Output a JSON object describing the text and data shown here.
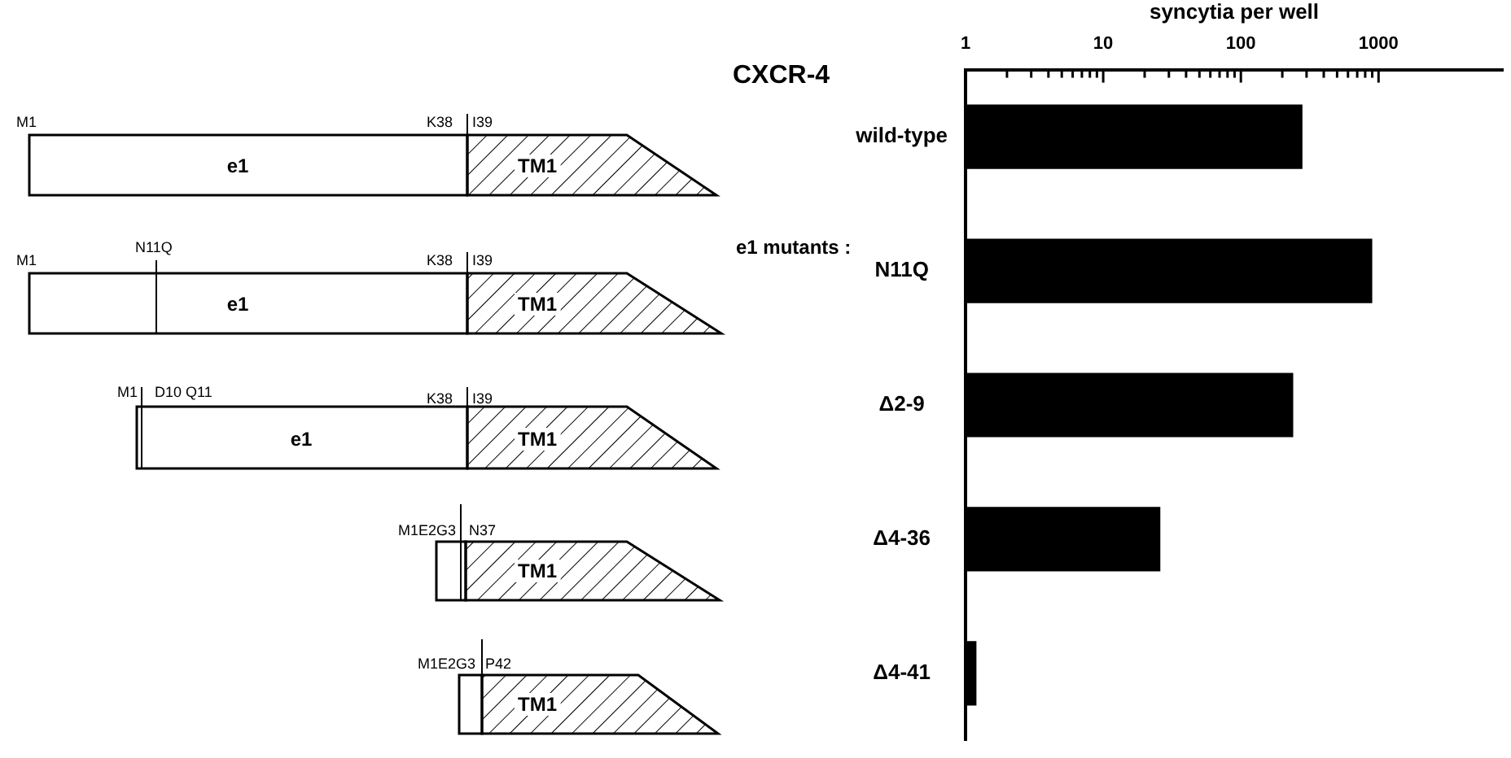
{
  "chart_data": {
    "type": "bar",
    "orientation": "horizontal",
    "title": "CXCR-4",
    "xlabel": "syncytia per well",
    "categories": [
      "wild-type",
      "N11Q",
      "Δ2-9",
      "Δ4-36",
      "Δ4-41"
    ],
    "values": [
      280,
      900,
      240,
      26,
      1.2
    ],
    "color": "#000000",
    "log": "x",
    "xlim": [
      1,
      8000
    ],
    "xticks": [
      1,
      {
        "value": 2,
        "label": null
      },
      {
        "value": 3,
        "label": null
      },
      {
        "value": 4,
        "label": null
      },
      {
        "value": 5,
        "label": null
      },
      {
        "value": 6,
        "label": null
      },
      {
        "value": 7,
        "label": null
      },
      {
        "value": 8,
        "label": null
      },
      {
        "value": 9,
        "label": null
      },
      10,
      {
        "value": 20,
        "label": null
      },
      {
        "value": 30,
        "label": null
      },
      {
        "value": 40,
        "label": null
      },
      {
        "value": 50,
        "label": null
      },
      {
        "value": 60,
        "label": null
      },
      {
        "value": 70,
        "label": null
      },
      {
        "value": 80,
        "label": null
      },
      {
        "value": 90,
        "label": null
      },
      100,
      {
        "value": 200,
        "label": null
      },
      {
        "value": 300,
        "label": null
      },
      {
        "value": 400,
        "label": null
      },
      {
        "value": 500,
        "label": null
      },
      {
        "value": 600,
        "label": null
      },
      {
        "value": 700,
        "label": null
      },
      {
        "value": 800,
        "label": null
      },
      {
        "value": 900,
        "label": null
      },
      1000
    ],
    "grid": false,
    "legend": false,
    "annotations": [
      "e1 mutants :",
      "M1",
      "K38",
      "I39",
      "e1",
      "TM1",
      "M1",
      "N11Q",
      "K38",
      "I39",
      "e1",
      "TM1",
      "M1",
      "D10 Q11",
      "K38",
      "I39",
      "e1",
      "TM1",
      "M1E2G3",
      "N37",
      "TM1",
      "M1E2G3",
      "P42",
      "TM1"
    ]
  }
}
